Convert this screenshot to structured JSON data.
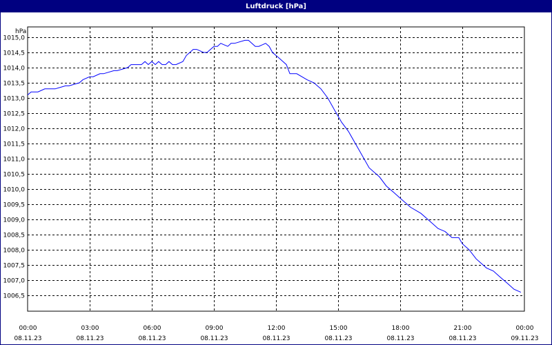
{
  "window": {
    "title": "Luftdruck [hPa]"
  },
  "colors": {
    "title_bar": "#000080",
    "series_line": "#0000ff",
    "grid": "#000000",
    "background": "#ffffff"
  },
  "chart_data": {
    "type": "line",
    "title": "Luftdruck [hPa]",
    "ylabel": "hPa",
    "xlabel": "",
    "grid": true,
    "grid_style": "dashed",
    "ylim": [
      1006.5,
      1015.0
    ],
    "xlim": [
      0,
      24
    ],
    "y_ticks": [
      "1015,0",
      "1014,5",
      "1014,0",
      "1013,5",
      "1013,0",
      "1012,5",
      "1012,0",
      "1011,5",
      "1011,0",
      "1010,5",
      "1010,0",
      "1009,5",
      "1009,0",
      "1008,5",
      "1008,0",
      "1007,5",
      "1007,0",
      "1006,5"
    ],
    "x_ticks": [
      {
        "time": "00:00",
        "date": "08.11.23"
      },
      {
        "time": "03:00",
        "date": "08.11.23"
      },
      {
        "time": "06:00",
        "date": "08.11.23"
      },
      {
        "time": "09:00",
        "date": "08.11.23"
      },
      {
        "time": "12:00",
        "date": "08.11.23"
      },
      {
        "time": "15:00",
        "date": "08.11.23"
      },
      {
        "time": "18:00",
        "date": "08.11.23"
      },
      {
        "time": "21:00",
        "date": "08.11.23"
      },
      {
        "time": "00:00",
        "date": "09.11.23"
      }
    ],
    "series": [
      {
        "x": [
          0.0,
          0.17,
          0.5,
          0.83,
          1.0,
          1.33,
          1.83,
          2.0,
          2.5,
          2.67,
          3.0,
          3.17,
          3.5,
          3.67,
          4.17,
          4.33,
          4.83,
          5.0,
          5.5,
          5.67,
          5.83,
          6.0,
          6.17,
          6.33,
          6.5,
          6.67,
          6.83,
          7.0,
          7.17,
          7.5,
          7.67,
          8.0,
          8.17,
          8.5,
          8.67,
          9.0,
          9.17,
          9.33,
          9.67,
          9.83,
          10.0,
          10.5,
          10.67,
          11.0,
          11.17,
          11.5,
          11.67,
          11.83,
          12.17,
          12.5,
          12.67,
          13.0,
          13.5,
          13.83,
          14.17,
          14.5,
          14.83,
          15.17,
          15.5,
          16.0,
          16.5,
          17.0,
          17.33,
          17.67,
          18.0,
          18.5,
          19.0,
          19.5,
          19.83,
          20.17,
          20.5,
          20.83,
          21.0,
          21.33,
          21.67,
          22.17,
          22.5,
          22.83,
          23.17,
          23.5,
          23.83
        ],
        "y": [
          1013.1,
          1013.2,
          1013.2,
          1013.3,
          1013.3,
          1013.3,
          1013.4,
          1013.4,
          1013.5,
          1013.6,
          1013.7,
          1013.7,
          1013.8,
          1013.8,
          1013.9,
          1013.9,
          1014.0,
          1014.1,
          1014.1,
          1014.2,
          1014.1,
          1014.2,
          1014.1,
          1014.2,
          1014.1,
          1014.1,
          1014.2,
          1014.1,
          1014.1,
          1014.2,
          1014.4,
          1014.6,
          1014.6,
          1014.5,
          1014.5,
          1014.7,
          1014.7,
          1014.8,
          1014.7,
          1014.8,
          1014.8,
          1014.9,
          1014.9,
          1014.7,
          1014.7,
          1014.8,
          1014.7,
          1014.5,
          1014.3,
          1014.1,
          1013.8,
          1013.8,
          1013.6,
          1013.5,
          1013.3,
          1013.0,
          1012.6,
          1012.2,
          1011.9,
          1011.3,
          1010.7,
          1010.4,
          1010.1,
          1009.9,
          1009.7,
          1009.4,
          1009.2,
          1008.9,
          1008.7,
          1008.6,
          1008.4,
          1008.4,
          1008.2,
          1008.0,
          1007.7,
          1007.4,
          1007.3,
          1007.1,
          1006.9,
          1006.7,
          1006.6
        ]
      }
    ]
  }
}
